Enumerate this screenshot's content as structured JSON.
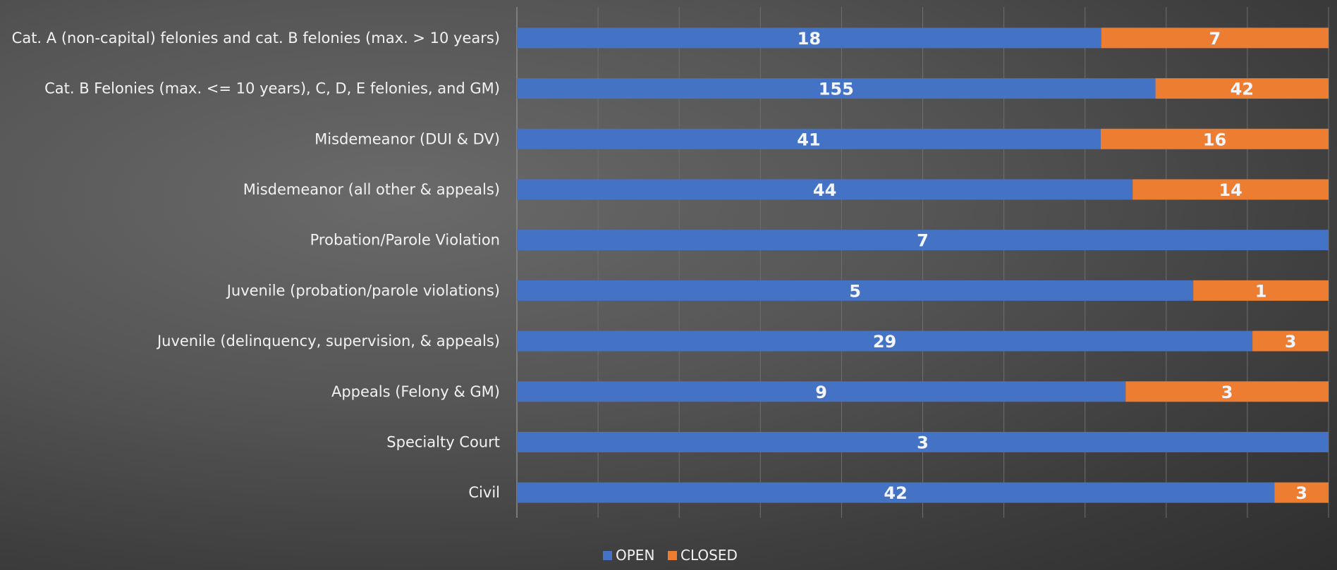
{
  "chart_data": {
    "type": "bar",
    "orientation": "horizontal",
    "stacked": "100%",
    "categories": [
      "Cat. A (non-capital) felonies and cat. B felonies (max. > 10 years)",
      "Cat. B Felonies (max. <= 10 years), C, D, E felonies, and GM)",
      "Misdemeanor (DUI & DV)",
      "Misdemeanor (all other & appeals)",
      "Probation/Parole Violation",
      "Juvenile (probation/parole violations)",
      "Juvenile (delinquency, supervision, & appeals)",
      "Appeals (Felony & GM)",
      "Specialty Court",
      "Civil"
    ],
    "series": [
      {
        "name": "OPEN",
        "color": "#4472C4",
        "values": [
          18,
          155,
          41,
          44,
          7,
          5,
          29,
          9,
          3,
          42
        ]
      },
      {
        "name": "CLOSED",
        "color": "#ED7D31",
        "values": [
          7,
          42,
          16,
          14,
          0,
          1,
          3,
          3,
          0,
          3
        ]
      }
    ],
    "legend_position": "bottom",
    "grid": true,
    "title": "",
    "xlabel": "",
    "ylabel": ""
  }
}
